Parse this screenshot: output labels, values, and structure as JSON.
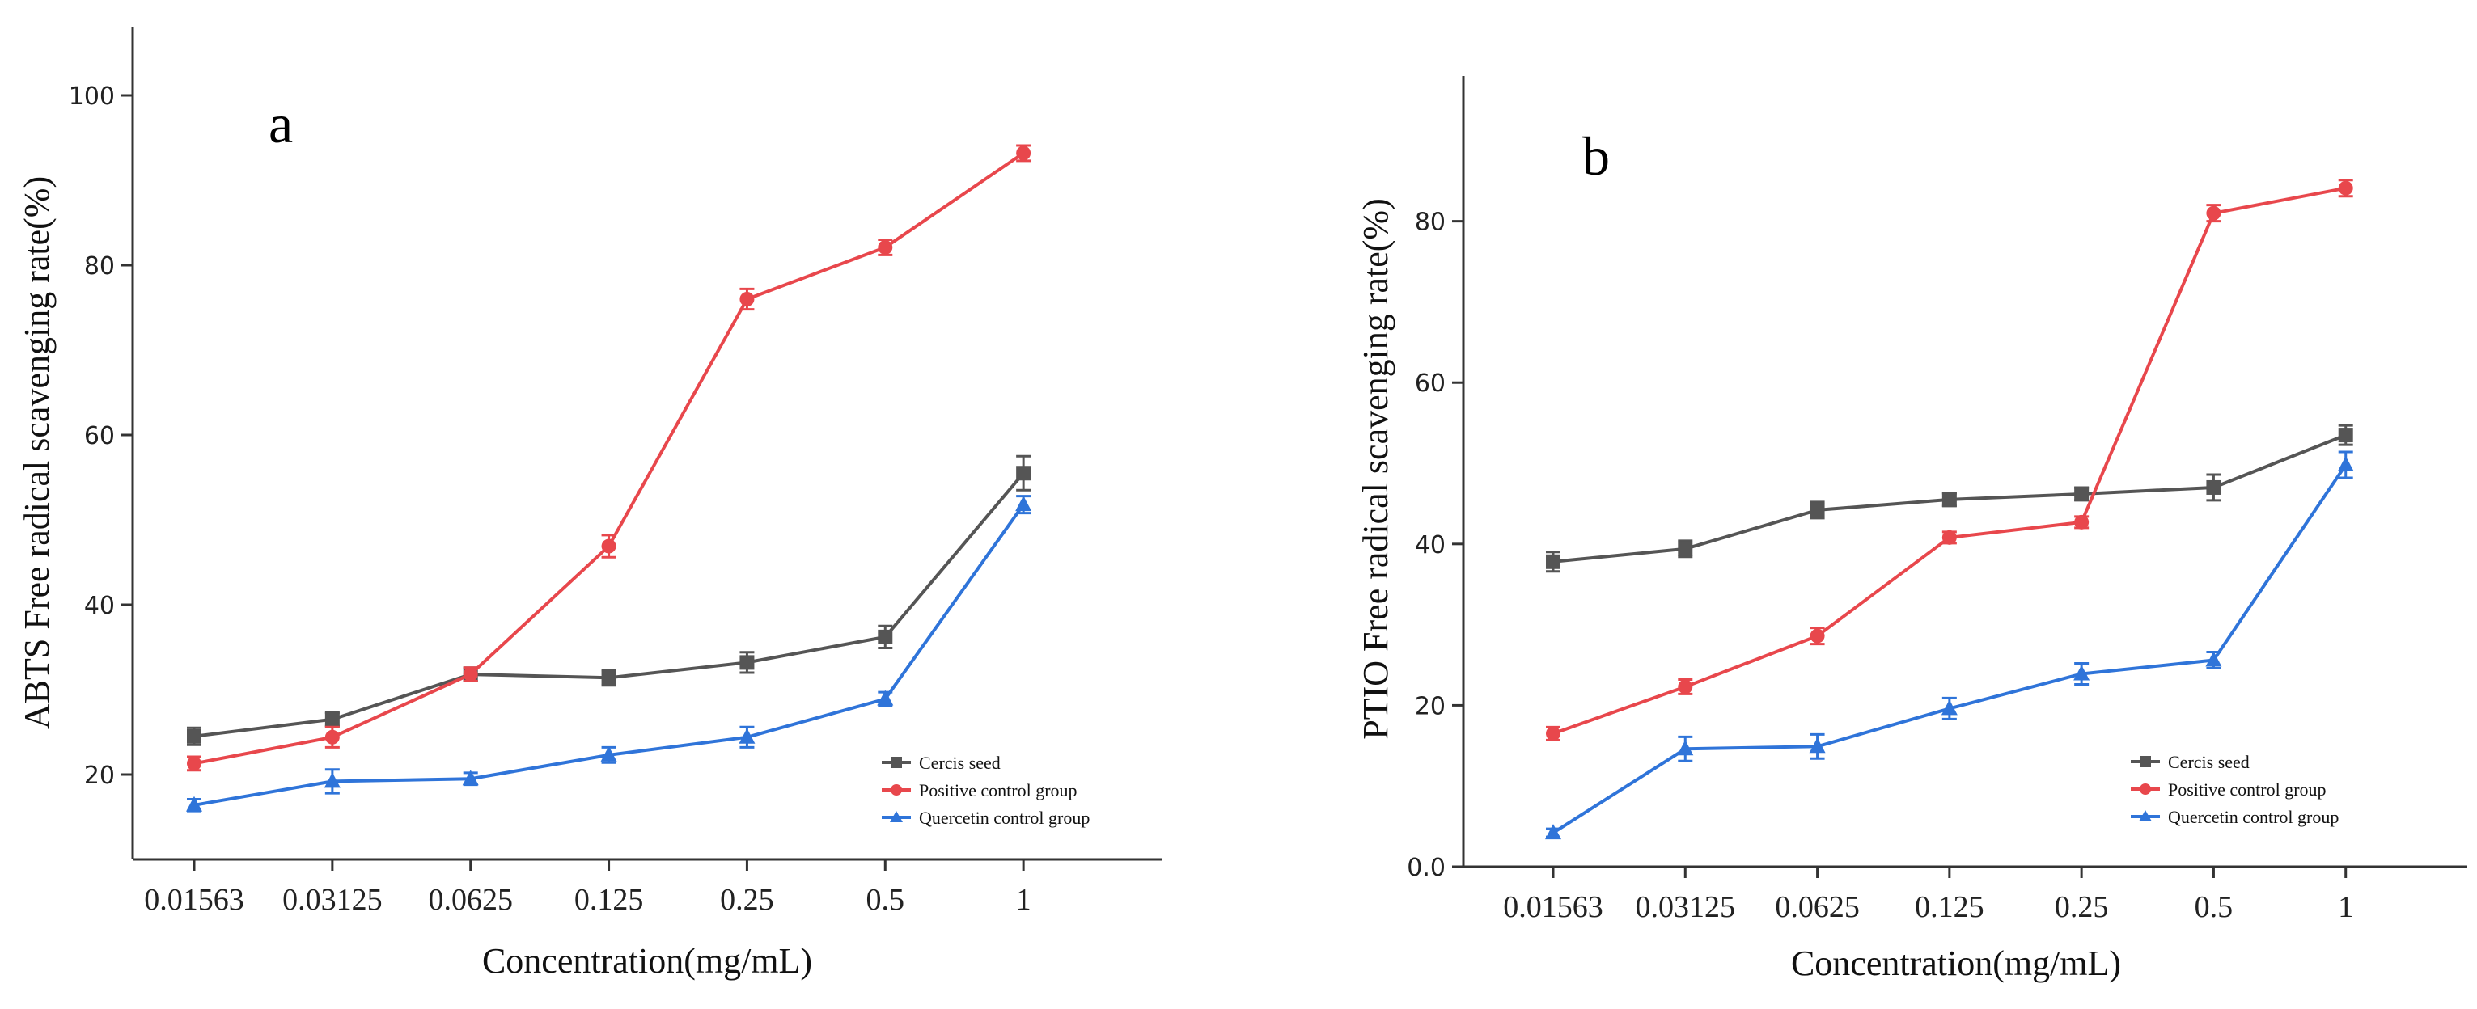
{
  "chart_data": [
    {
      "type": "line",
      "panel_label": "a",
      "xlabel": "Concentration(mg/mL)",
      "ylabel": "ABTS Free radical scavenging rate(%)",
      "categories": [
        "0.01563",
        "0.03125",
        "0.0625",
        "0.125",
        "0.25",
        "0.5",
        "1"
      ],
      "ylim": [
        10,
        108
      ],
      "yticks": [
        20,
        40,
        60,
        80,
        100
      ],
      "ytick_labels": [
        "20",
        "40",
        "60",
        "80",
        "100"
      ],
      "legend_position": "bottom-right",
      "series": [
        {
          "name": "Cercis seed",
          "color": "#555555",
          "marker": "square",
          "values": [
            24.5,
            26.5,
            31.8,
            31.4,
            33.2,
            36.2,
            55.5
          ],
          "errors": [
            1.0,
            0.8,
            0.8,
            0.9,
            1.2,
            1.3,
            2.0
          ]
        },
        {
          "name": "Positive control group",
          "color": "#e8474c",
          "marker": "circle",
          "values": [
            21.3,
            24.4,
            31.8,
            46.9,
            76.0,
            82.1,
            93.2
          ],
          "errors": [
            0.8,
            1.2,
            0.8,
            1.3,
            1.2,
            0.9,
            0.9
          ]
        },
        {
          "name": "Quercetin control group",
          "color": "#2f74d9",
          "marker": "triangle",
          "values": [
            16.4,
            19.2,
            19.5,
            22.3,
            24.4,
            28.9,
            51.8
          ],
          "errors": [
            0.7,
            1.4,
            0.7,
            0.9,
            1.2,
            0.8,
            1.0
          ]
        }
      ]
    },
    {
      "type": "line",
      "panel_label": "b",
      "xlabel": "Concentration(mg/mL)",
      "ylabel": "PTIO Free radical scavenging rate(%)",
      "categories": [
        "0.01563",
        "0.03125",
        "0.0625",
        "0.125",
        "0.25",
        "0.5",
        "1"
      ],
      "ylim": [
        0,
        98
      ],
      "yticks": [
        0,
        20,
        40,
        60,
        80
      ],
      "ytick_labels": [
        "0.0",
        "20",
        "40",
        "60",
        "80"
      ],
      "legend_position": "bottom-right",
      "series": [
        {
          "name": "Cercis seed",
          "color": "#555555",
          "marker": "square",
          "values": [
            37.8,
            39.4,
            44.2,
            45.5,
            46.2,
            47.0,
            53.5
          ],
          "errors": [
            1.2,
            1.0,
            1.0,
            0.8,
            0.8,
            1.6,
            1.2
          ]
        },
        {
          "name": "Positive control group",
          "color": "#e8474c",
          "marker": "circle",
          "values": [
            16.5,
            22.3,
            28.6,
            40.8,
            42.7,
            81.0,
            84.1
          ],
          "errors": [
            0.8,
            0.9,
            1.0,
            0.7,
            0.7,
            1.0,
            1.0
          ]
        },
        {
          "name": "Quercetin control group",
          "color": "#2f74d9",
          "marker": "triangle",
          "values": [
            4.2,
            14.6,
            14.9,
            19.6,
            23.9,
            25.6,
            49.8
          ],
          "errors": [
            0.5,
            1.5,
            1.5,
            1.3,
            1.3,
            1.0,
            1.6
          ]
        }
      ]
    }
  ]
}
